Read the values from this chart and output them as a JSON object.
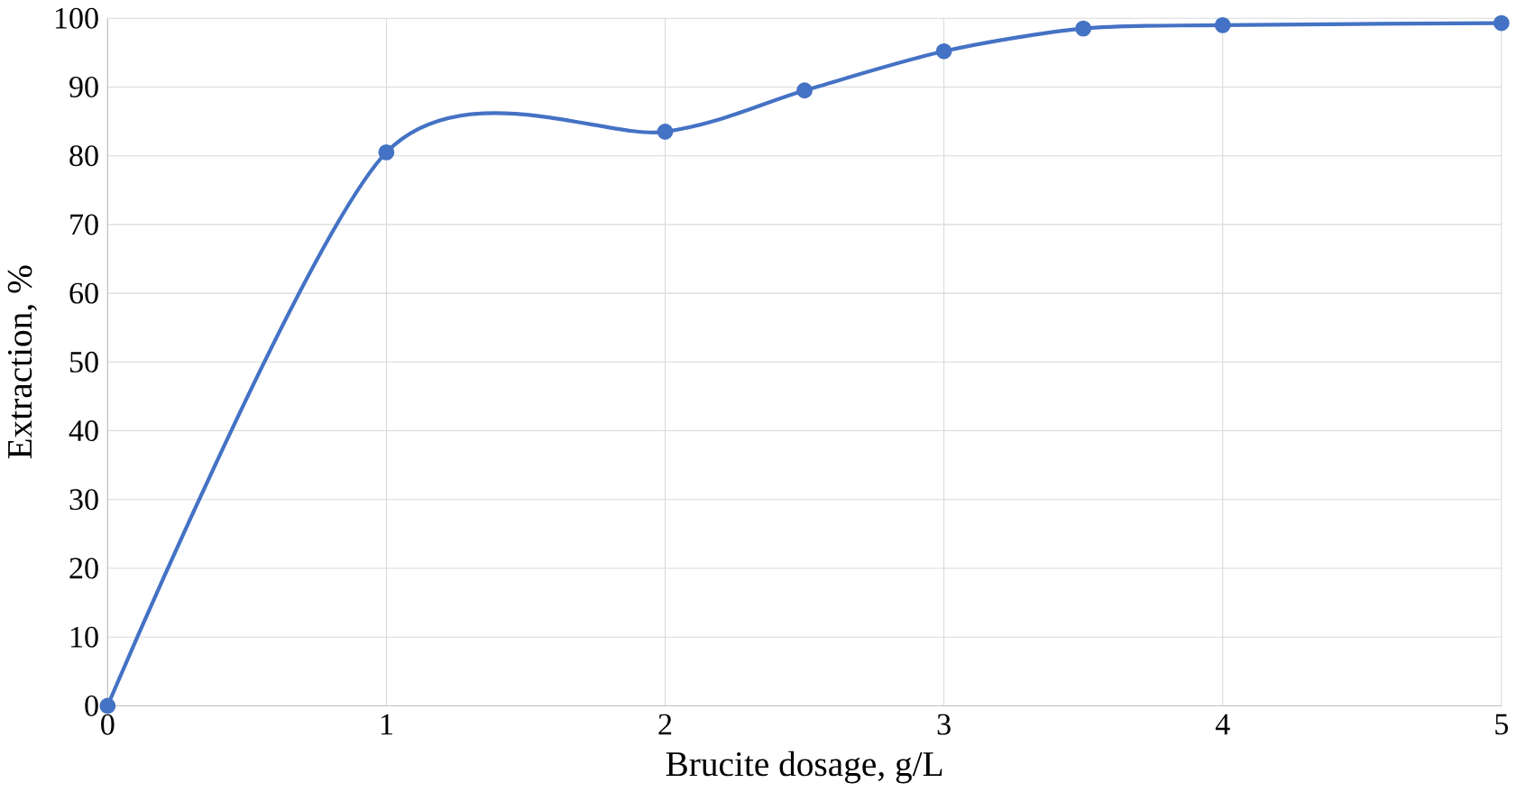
{
  "chart_data": {
    "type": "line",
    "xlabel": "Brucite  dosage, g/L",
    "ylabel": "Extraction, %",
    "x": [
      0,
      1,
      2,
      2.5,
      3,
      3.5,
      4,
      5
    ],
    "series": [
      {
        "color": "#4472c4",
        "values": [
          0,
          80.5,
          83.5,
          89.5,
          95.2,
          98.5,
          99,
          99.3
        ]
      }
    ],
    "xlim": [
      0,
      5
    ],
    "xticks": [
      0,
      1,
      2,
      3,
      4,
      5
    ],
    "ylim": [
      0,
      100
    ],
    "yticks": [
      0,
      10,
      20,
      30,
      40,
      50,
      60,
      70,
      80,
      90,
      100
    ],
    "grid": true,
    "marker": "circle",
    "line_style": "solid"
  }
}
